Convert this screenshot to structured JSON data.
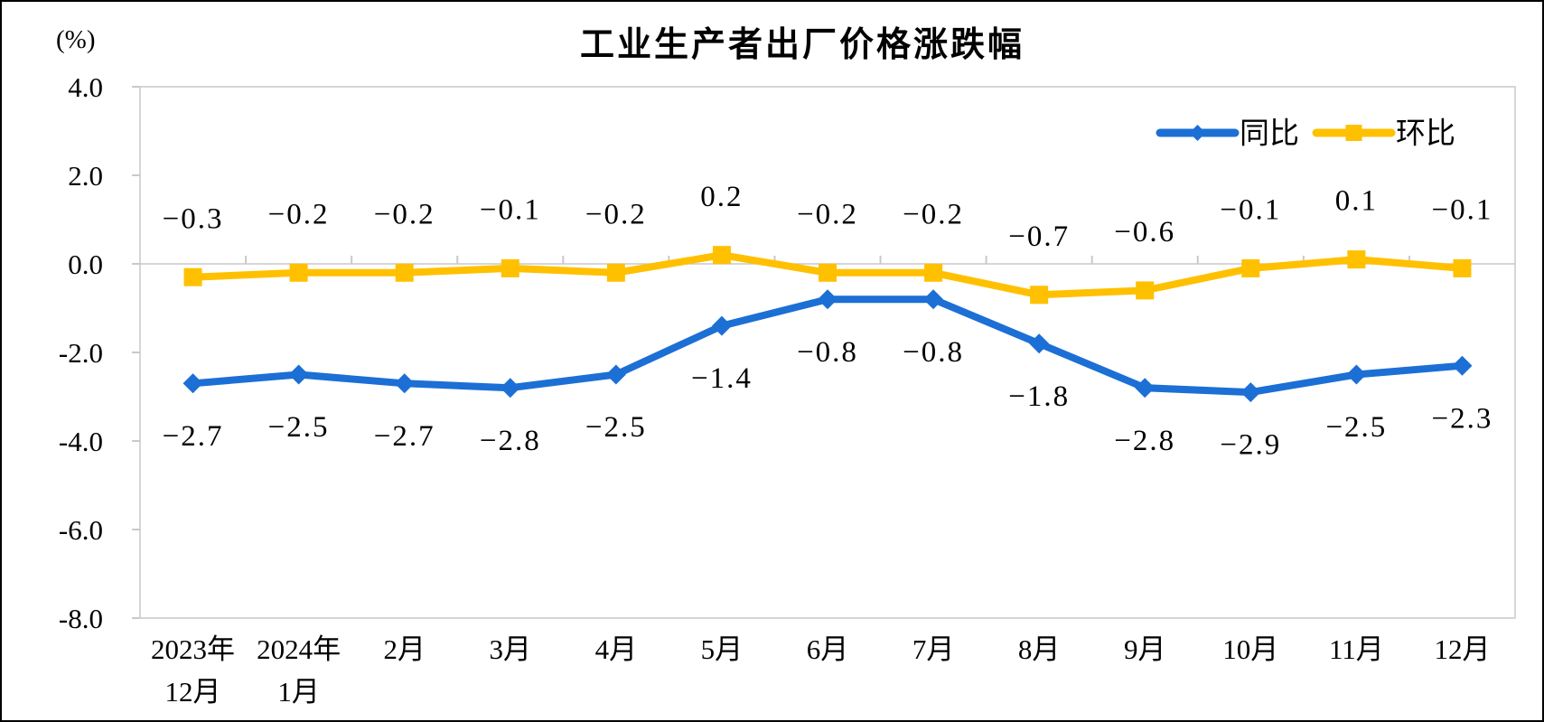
{
  "chart_data": {
    "type": "line",
    "title": "工业生产者出厂价格涨跌幅",
    "unit_label": "(%)",
    "categories": [
      "2023年12月",
      "2024年1月",
      "2月",
      "3月",
      "4月",
      "5月",
      "6月",
      "7月",
      "8月",
      "9月",
      "10月",
      "11月",
      "12月"
    ],
    "category_lines": [
      [
        "2023年",
        "12月"
      ],
      [
        "2024年",
        "1月"
      ],
      [
        "2月"
      ],
      [
        "3月"
      ],
      [
        "4月"
      ],
      [
        "5月"
      ],
      [
        "6月"
      ],
      [
        "7月"
      ],
      [
        "8月"
      ],
      [
        "9月"
      ],
      [
        "10月"
      ],
      [
        "11月"
      ],
      [
        "12月"
      ]
    ],
    "series": [
      {
        "name": "同比",
        "color": "#1C6FD4",
        "marker": "diamond",
        "label_position": "below",
        "values": [
          -2.7,
          -2.5,
          -2.7,
          -2.8,
          -2.5,
          -1.4,
          -0.8,
          -0.8,
          -1.8,
          -2.8,
          -2.9,
          -2.5,
          -2.3
        ],
        "labels": [
          "−2.7",
          "−2.5",
          "−2.7",
          "−2.8",
          "−2.5",
          "−1.4",
          "−0.8",
          "−0.8",
          "−1.8",
          "−2.8",
          "−2.9",
          "−2.5",
          "−2.3"
        ]
      },
      {
        "name": "环比",
        "color": "#FFC000",
        "marker": "square",
        "label_position": "above",
        "values": [
          -0.3,
          -0.2,
          -0.2,
          -0.1,
          -0.2,
          0.2,
          -0.2,
          -0.2,
          -0.7,
          -0.6,
          -0.1,
          0.1,
          -0.1
        ],
        "labels": [
          "−0.3",
          "−0.2",
          "−0.2",
          "−0.1",
          "−0.2",
          "0.2",
          "−0.2",
          "−0.2",
          "−0.7",
          "−0.6",
          "−0.1",
          "0.1",
          "−0.1"
        ]
      }
    ],
    "y_axis": {
      "min": -8,
      "max": 4,
      "step": 2,
      "tick_labels": [
        "4.0",
        "2.0",
        "0.0",
        "-2.0",
        "-4.0",
        "-6.0",
        "-8.0"
      ]
    },
    "x_axis": {
      "tick_position": "zero-line"
    },
    "legend": {
      "position": "top-right"
    },
    "grid": "zero-line-only",
    "colors": {
      "axis_line": "#C9C9C9",
      "label_text": "#000000"
    }
  }
}
